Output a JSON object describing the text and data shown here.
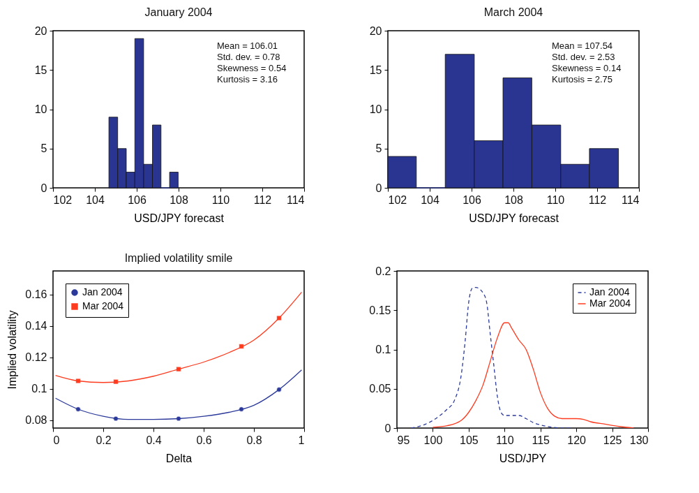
{
  "chart_data": [
    {
      "type": "histogram",
      "title": "January 2004",
      "xlabel": "USD/JPY forecast",
      "color": "#2a3592",
      "bins": [
        104.67,
        105.09,
        105.5,
        105.91,
        106.33,
        106.75,
        107.16,
        107.57,
        107.98
      ],
      "values": [
        9,
        5,
        2,
        19,
        3,
        8,
        0,
        2
      ],
      "xlim": [
        102,
        114
      ],
      "xticks": [
        102,
        104,
        106,
        108,
        110,
        112,
        114
      ],
      "ylim": [
        0,
        20
      ],
      "yticks": [
        0,
        5,
        10,
        15,
        20
      ],
      "annotations": [
        "Mean = 106.01",
        "Std. dev. = 0.78",
        "Skewness = 0.54",
        "Kurtosis = 3.16"
      ]
    },
    {
      "type": "histogram",
      "title": "March 2004",
      "xlabel": "USD/JPY forecast",
      "color": "#2a3592",
      "bins": [
        102,
        103.36,
        104.74,
        106.13,
        107.5,
        108.88,
        110.26,
        111.63,
        113.02
      ],
      "values": [
        4,
        0,
        17,
        6,
        14,
        8,
        3,
        5
      ],
      "xlim": [
        102,
        114
      ],
      "xticks": [
        102,
        104,
        106,
        108,
        110,
        112,
        114
      ],
      "ylim": [
        0,
        20
      ],
      "yticks": [
        0,
        5,
        10,
        15,
        20
      ],
      "annotations": [
        "Mean = 107.54",
        "Std. dev. = 2.53",
        "Skewness = 0.14",
        "Kurtosis = 2.75"
      ]
    },
    {
      "type": "line",
      "title": "Implied volatility smile",
      "xlabel": "Delta",
      "ylabel": "Implied volatility",
      "legend": "top left",
      "xlim": [
        0,
        1
      ],
      "xticks": [
        0,
        0.2,
        0.4,
        0.6,
        0.8,
        1
      ],
      "ylim": [
        0.075,
        0.175
      ],
      "yticks": [
        0.08,
        0.1,
        0.12,
        0.14,
        0.16
      ],
      "series": [
        {
          "type": "scatter",
          "name": "Jan 2004",
          "color": "#2b3a9a",
          "marker": "circle",
          "x": [
            0.1,
            0.25,
            0.5,
            0.75,
            0.9
          ],
          "values": [
            0.087,
            0.081,
            0.081,
            0.087,
            0.0995
          ]
        },
        {
          "type": "line",
          "color": "#2b3a9a",
          "x": [
            0.01,
            0.1,
            0.2,
            0.3,
            0.4,
            0.5,
            0.6,
            0.7,
            0.8,
            0.9,
            0.99
          ],
          "values": [
            0.094,
            0.087,
            0.0825,
            0.0805,
            0.0805,
            0.081,
            0.0825,
            0.085,
            0.0895,
            0.0995,
            0.112
          ]
        },
        {
          "type": "scatter",
          "name": "Mar 2004",
          "color": "#ff3b1f",
          "marker": "square",
          "x": [
            0.1,
            0.25,
            0.5,
            0.75,
            0.9
          ],
          "values": [
            0.105,
            0.1045,
            0.1125,
            0.127,
            0.145
          ]
        },
        {
          "type": "line",
          "color": "#ff3b1f",
          "x": [
            0.01,
            0.1,
            0.2,
            0.3,
            0.4,
            0.5,
            0.6,
            0.7,
            0.8,
            0.9,
            0.99
          ],
          "values": [
            0.1085,
            0.105,
            0.104,
            0.105,
            0.108,
            0.1125,
            0.117,
            0.123,
            0.131,
            0.145,
            0.1615
          ]
        }
      ]
    },
    {
      "type": "line",
      "xlabel": "USD/JPY",
      "legend": "top right",
      "xlim": [
        95,
        130
      ],
      "xticks": [
        95,
        100,
        105,
        110,
        115,
        120,
        125,
        130
      ],
      "ylim": [
        0,
        0.2
      ],
      "yticks": [
        0,
        0.05,
        0.1,
        0.15,
        0.2
      ],
      "series": [
        {
          "name": "Jan 2004",
          "color": "#2b3a9a",
          "line_style": "dashed",
          "x": [
            97,
            99,
            101,
            102,
            103,
            104,
            104.5,
            105,
            105.5,
            106,
            107,
            107.5,
            108,
            108.5,
            109,
            109.5,
            110,
            111,
            112,
            113,
            114,
            115,
            116,
            118,
            119.5
          ],
          "values": [
            0,
            0.005,
            0.016,
            0.024,
            0.035,
            0.07,
            0.11,
            0.16,
            0.178,
            0.179,
            0.172,
            0.16,
            0.12,
            0.08,
            0.04,
            0.02,
            0.016,
            0.016,
            0.016,
            0.012,
            0.007,
            0.004,
            0.002,
            0,
            0
          ]
        },
        {
          "name": "Mar 2004",
          "color": "#ff3b1f",
          "line_style": "solid",
          "x": [
            100,
            102,
            104,
            105,
            106,
            107,
            108,
            109,
            110,
            110.5,
            111,
            112,
            113,
            114,
            115,
            116,
            117,
            118,
            119,
            120,
            121,
            122,
            124,
            126,
            128
          ],
          "values": [
            0.001,
            0.003,
            0.01,
            0.02,
            0.035,
            0.055,
            0.085,
            0.115,
            0.134,
            0.134,
            0.127,
            0.112,
            0.1,
            0.075,
            0.045,
            0.025,
            0.015,
            0.012,
            0.012,
            0.012,
            0.011,
            0.008,
            0.005,
            0.002,
            0
          ]
        }
      ]
    }
  ]
}
